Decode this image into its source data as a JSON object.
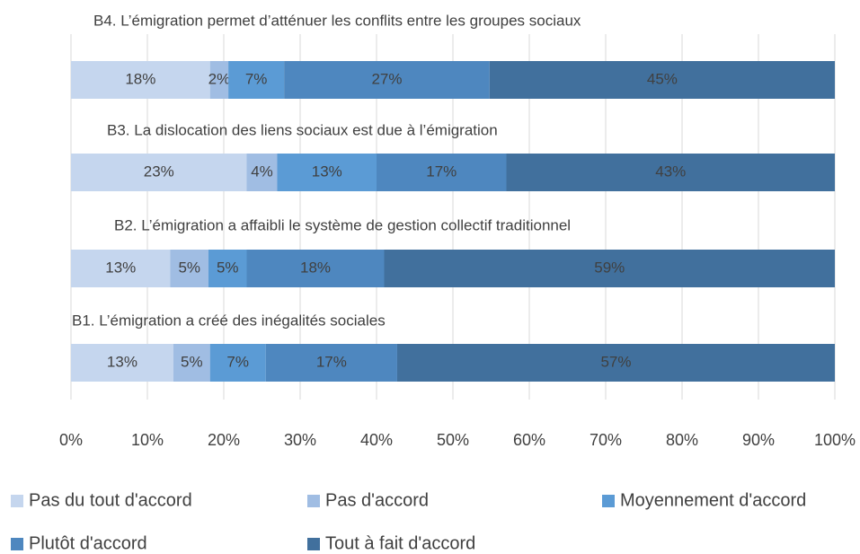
{
  "chart_data": {
    "type": "bar",
    "orientation": "horizontal",
    "stacked": true,
    "categories": [
      "B4. L’émigration permet d’atténuer les conflits entre les groupes sociaux",
      "B3. La dislocation des liens sociaux est due à l’émigration",
      "B2. L’émigration a affaibli le système de gestion collectif traditionnel",
      "B1. L’émigration a créé des inégalités sociales"
    ],
    "series": [
      {
        "name": "Pas du tout d'accord",
        "color": "#c5d6ee",
        "values": [
          18.2,
          23,
          13,
          13.4
        ],
        "value_labels": [
          "18%",
          "23%",
          "13%",
          "13%"
        ]
      },
      {
        "name": "Pas d'accord",
        "color": "#a0bde3",
        "values": [
          2.4,
          4,
          5,
          4.8
        ],
        "value_labels": [
          "2%",
          "4%",
          "5%",
          "5%"
        ]
      },
      {
        "name": "Moyennement d'accord",
        "color": "#5b9bd5",
        "values": [
          7.3,
          13,
          5,
          7.3
        ],
        "value_labels": [
          "7%",
          "13%",
          "5%",
          "7%"
        ]
      },
      {
        "name": "Plutôt d'accord",
        "color": "#4e87bf",
        "values": [
          26.9,
          17,
          18,
          17.2
        ],
        "value_labels": [
          "27%",
          "17%",
          "18%",
          "17%"
        ]
      },
      {
        "name": "Tout à fait d'accord",
        "color": "#41709d",
        "values": [
          45.2,
          43,
          59,
          57.3
        ],
        "value_labels": [
          "45%",
          "43%",
          "59%",
          "57%"
        ]
      }
    ],
    "xlim": [
      0,
      100
    ],
    "xticks": [
      {
        "value": 0,
        "label": "0%"
      },
      {
        "value": 10,
        "label": "10%"
      },
      {
        "value": 20,
        "label": "20%"
      },
      {
        "value": 30,
        "label": "30%"
      },
      {
        "value": 40,
        "label": "40%"
      },
      {
        "value": 50,
        "label": "50%"
      },
      {
        "value": 60,
        "label": "60%"
      },
      {
        "value": 70,
        "label": "70%"
      },
      {
        "value": 80,
        "label": "80%"
      },
      {
        "value": 90,
        "label": "90%"
      },
      {
        "value": 100,
        "label": "100%"
      }
    ],
    "grid": true,
    "legend": "bottom"
  }
}
